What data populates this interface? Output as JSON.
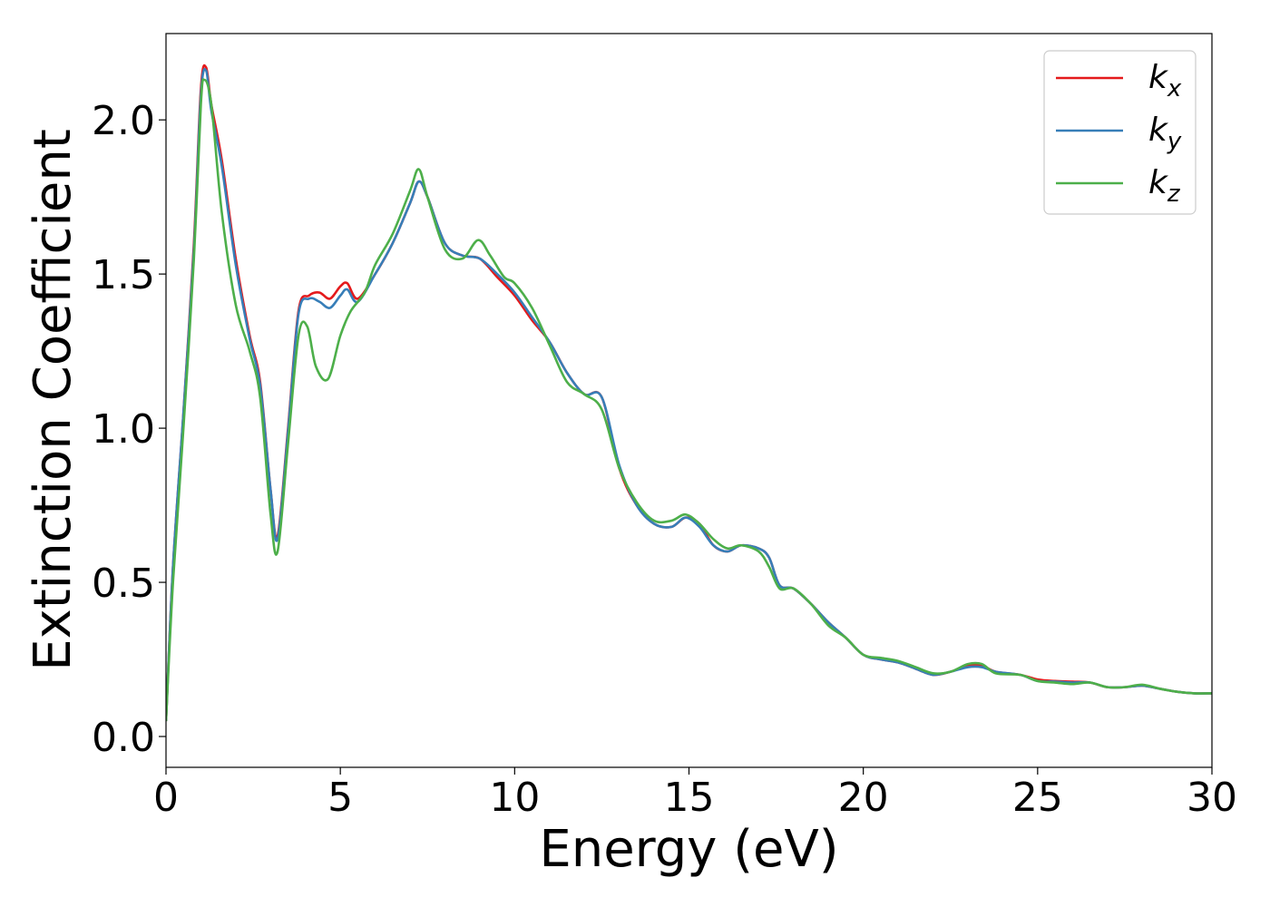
{
  "chart_data": {
    "type": "line",
    "title": "",
    "xlabel": "Energy (eV)",
    "ylabel": "Extinction Coefficient",
    "xlim": [
      0,
      30
    ],
    "ylim": [
      -0.1,
      2.28
    ],
    "xticks": [
      0,
      5,
      10,
      15,
      20,
      25,
      30
    ],
    "xtick_labels": [
      "0",
      "5",
      "10",
      "15",
      "20",
      "25",
      "30"
    ],
    "yticks": [
      0.0,
      0.5,
      1.0,
      1.5,
      2.0
    ],
    "ytick_labels": [
      "0.0",
      "0.5",
      "1.0",
      "1.5",
      "2.0"
    ],
    "grid": false,
    "legend_position": "top-right",
    "series": [
      {
        "name": "k_x",
        "legend_base": "k",
        "legend_sub": "x",
        "color": "#e41a1c",
        "x": [
          0,
          0.2,
          0.5,
          0.8,
          1.0,
          1.15,
          1.3,
          1.6,
          2.0,
          2.4,
          2.7,
          3.0,
          3.2,
          3.5,
          3.8,
          4.1,
          4.4,
          4.7,
          5.0,
          5.2,
          5.5,
          6.0,
          6.5,
          7.0,
          7.25,
          7.5,
          8.0,
          8.5,
          9.0,
          9.5,
          10.0,
          10.5,
          11.0,
          11.5,
          12.0,
          12.5,
          13.0,
          13.5,
          14.0,
          14.5,
          14.9,
          15.3,
          15.7,
          16.1,
          16.5,
          17.0,
          17.3,
          17.6,
          18.0,
          18.5,
          19.0,
          19.5,
          20.0,
          20.5,
          21.0,
          21.5,
          22.0,
          22.5,
          23.0,
          23.4,
          23.8,
          24.5,
          25.0,
          25.5,
          26.0,
          26.5,
          27.0,
          27.5,
          28.0,
          28.5,
          29.0,
          29.5,
          30.0
        ],
        "y": [
          0.05,
          0.55,
          1.05,
          1.6,
          2.1,
          2.17,
          2.05,
          1.87,
          1.55,
          1.3,
          1.15,
          0.8,
          0.65,
          1.0,
          1.38,
          1.43,
          1.44,
          1.42,
          1.46,
          1.47,
          1.42,
          1.5,
          1.6,
          1.73,
          1.8,
          1.75,
          1.6,
          1.56,
          1.55,
          1.49,
          1.43,
          1.35,
          1.28,
          1.18,
          1.11,
          1.1,
          0.87,
          0.75,
          0.69,
          0.68,
          0.71,
          0.69,
          0.62,
          0.6,
          0.62,
          0.61,
          0.58,
          0.49,
          0.48,
          0.43,
          0.37,
          0.32,
          0.265,
          0.25,
          0.24,
          0.22,
          0.2,
          0.21,
          0.23,
          0.23,
          0.21,
          0.2,
          0.185,
          0.18,
          0.178,
          0.175,
          0.16,
          0.16,
          0.165,
          0.155,
          0.145,
          0.14,
          0.14
        ]
      },
      {
        "name": "k_y",
        "legend_base": "k",
        "legend_sub": "y",
        "color": "#377eb8",
        "x": [
          0,
          0.2,
          0.5,
          0.8,
          1.0,
          1.15,
          1.3,
          1.6,
          2.0,
          2.4,
          2.7,
          3.0,
          3.2,
          3.5,
          3.8,
          4.1,
          4.4,
          4.7,
          5.0,
          5.2,
          5.5,
          6.0,
          6.5,
          7.0,
          7.25,
          7.5,
          8.0,
          8.5,
          9.0,
          9.5,
          10.0,
          10.5,
          11.0,
          11.5,
          12.0,
          12.5,
          13.0,
          13.5,
          14.0,
          14.5,
          14.9,
          15.3,
          15.7,
          16.1,
          16.5,
          17.0,
          17.3,
          17.6,
          18.0,
          18.5,
          19.0,
          19.5,
          20.0,
          20.5,
          21.0,
          21.5,
          22.0,
          22.5,
          23.0,
          23.4,
          23.8,
          24.5,
          25.0,
          25.5,
          26.0,
          26.5,
          27.0,
          27.5,
          28.0,
          28.5,
          29.0,
          29.5,
          30.0
        ],
        "y": [
          0.05,
          0.55,
          1.05,
          1.58,
          2.08,
          2.16,
          2.03,
          1.85,
          1.53,
          1.29,
          1.14,
          0.8,
          0.64,
          0.99,
          1.37,
          1.42,
          1.41,
          1.39,
          1.43,
          1.45,
          1.41,
          1.5,
          1.6,
          1.73,
          1.8,
          1.75,
          1.6,
          1.56,
          1.55,
          1.5,
          1.44,
          1.36,
          1.28,
          1.18,
          1.11,
          1.1,
          0.88,
          0.75,
          0.69,
          0.68,
          0.71,
          0.68,
          0.62,
          0.6,
          0.62,
          0.61,
          0.58,
          0.49,
          0.48,
          0.43,
          0.37,
          0.32,
          0.265,
          0.25,
          0.24,
          0.22,
          0.2,
          0.21,
          0.225,
          0.225,
          0.21,
          0.2,
          0.18,
          0.178,
          0.175,
          0.175,
          0.16,
          0.16,
          0.165,
          0.155,
          0.145,
          0.14,
          0.14
        ]
      },
      {
        "name": "k_z",
        "legend_base": "k",
        "legend_sub": "z",
        "color": "#4daf4a",
        "x": [
          0,
          0.2,
          0.5,
          0.8,
          1.0,
          1.1,
          1.3,
          1.6,
          2.0,
          2.4,
          2.7,
          3.0,
          3.2,
          3.5,
          3.8,
          4.05,
          4.3,
          4.65,
          5.0,
          5.3,
          5.7,
          6.0,
          6.5,
          7.0,
          7.25,
          7.5,
          8.0,
          8.5,
          8.95,
          9.3,
          9.7,
          10.0,
          10.5,
          11.0,
          11.5,
          12.0,
          12.5,
          13.0,
          13.5,
          14.0,
          14.5,
          14.9,
          15.3,
          15.7,
          16.1,
          16.5,
          17.0,
          17.3,
          17.6,
          18.0,
          18.5,
          19.0,
          19.5,
          20.0,
          20.5,
          21.0,
          21.5,
          22.0,
          22.5,
          23.0,
          23.4,
          23.8,
          24.5,
          25.0,
          25.5,
          26.0,
          26.5,
          27.0,
          27.5,
          28.0,
          28.5,
          29.0,
          29.5,
          30.0
        ],
        "y": [
          0.05,
          0.5,
          1.0,
          1.55,
          2.05,
          2.13,
          2.05,
          1.7,
          1.4,
          1.25,
          1.1,
          0.72,
          0.6,
          0.95,
          1.3,
          1.33,
          1.2,
          1.16,
          1.3,
          1.38,
          1.44,
          1.53,
          1.63,
          1.77,
          1.84,
          1.75,
          1.58,
          1.55,
          1.61,
          1.56,
          1.49,
          1.47,
          1.39,
          1.27,
          1.15,
          1.11,
          1.06,
          0.87,
          0.76,
          0.7,
          0.7,
          0.72,
          0.69,
          0.64,
          0.61,
          0.62,
          0.6,
          0.55,
          0.48,
          0.48,
          0.43,
          0.36,
          0.32,
          0.265,
          0.255,
          0.245,
          0.225,
          0.205,
          0.21,
          0.235,
          0.235,
          0.205,
          0.2,
          0.18,
          0.175,
          0.17,
          0.175,
          0.16,
          0.16,
          0.168,
          0.155,
          0.145,
          0.14,
          0.14
        ]
      }
    ]
  }
}
